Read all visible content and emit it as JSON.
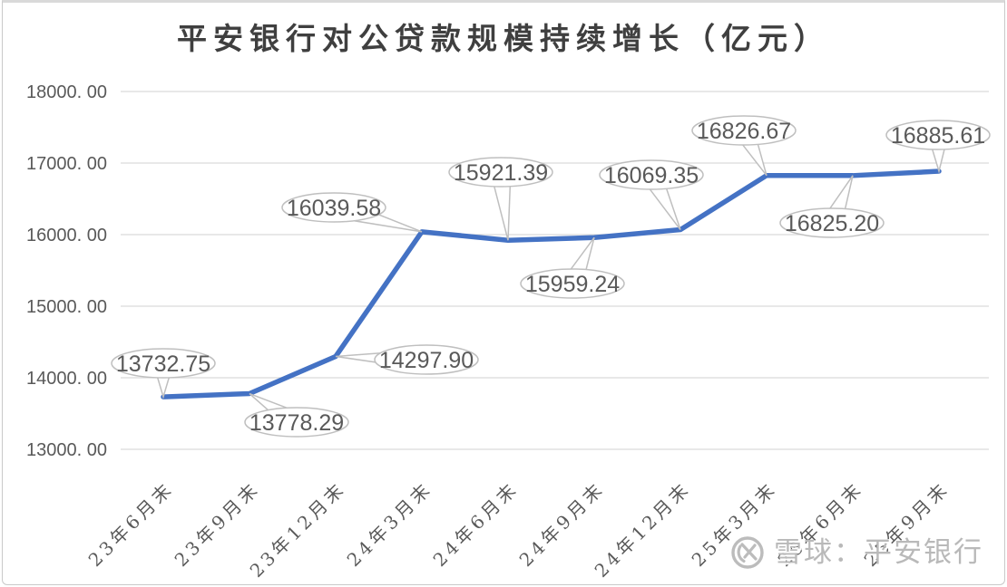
{
  "chart": {
    "title": "平安银行对公贷款规模持续增长（亿元）"
  },
  "watermark": {
    "text": "雪球：平安银行",
    "logo": "xueqiu-snowball-icon"
  },
  "colors": {
    "line": "#4472c4",
    "grid": "#d9d9d9",
    "callout_border": "#bfbfbf",
    "callout_fill": "#ffffff",
    "text": "#595959",
    "axis_text": "#595959",
    "title_text": "#3f3f3f",
    "watermark_text": "#b9b9b9"
  },
  "chart_data": {
    "type": "line",
    "title": "平安银行对公贷款规模持续增长（亿元）",
    "categories": [
      "23年6月末",
      "23年9月末",
      "23年12月末",
      "24年3月末",
      "24年6月末",
      "24年9月末",
      "24年12月末",
      "25年3月末",
      "25年6月末",
      "25年9月末"
    ],
    "values": [
      13732.75,
      13778.29,
      14297.9,
      16039.58,
      15921.39,
      15959.24,
      16069.35,
      16826.67,
      16825.2,
      16885.61
    ],
    "point_labels": [
      "13732.75",
      "13778.29",
      "14297.90",
      "16039.58",
      "15921.39",
      "15959.24",
      "16069.35",
      "16826.67",
      "16825.20",
      "16885.61"
    ],
    "yticks": {
      "labels": [
        "18000. 00",
        "17000. 00",
        "16000. 00",
        "15000. 00",
        "14000. 00",
        "13000. 00"
      ],
      "values": [
        18000,
        17000,
        16000,
        15000,
        14000,
        13000
      ]
    },
    "ylim": [
      13000,
      18000
    ],
    "xlabel": "",
    "ylabel": "",
    "legend": "none",
    "grid": "horizontal",
    "data_labels": "callout-bubbles"
  }
}
